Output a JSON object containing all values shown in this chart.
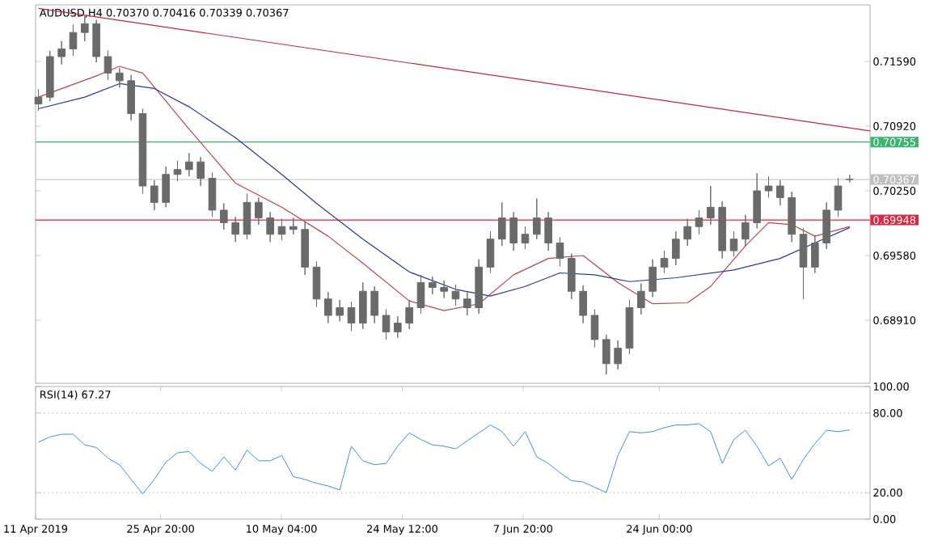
{
  "chart_data": [
    {
      "type": "candlestick",
      "title": "AUDUSD,H4  0.70370 0.70416 0.70339 0.70367",
      "color": "#6a6a6a",
      "x": [
        "2019-04-11T08:00",
        "2019-04-12T17:00",
        "2019-04-14T02:00",
        "2019-04-15T11:00",
        "2019-04-16T20:00",
        "2019-04-18T05:00",
        "2019-04-19T14:00",
        "2019-04-20T23:00",
        "2019-04-22T08:00",
        "2019-04-23T17:00",
        "2019-04-25T02:00",
        "2019-04-26T11:00",
        "2019-04-27T20:00",
        "2019-04-29T05:00",
        "2019-04-30T14:00",
        "2019-05-01T23:00",
        "2019-05-03T08:00",
        "2019-05-04T17:00",
        "2019-05-06T02:00",
        "2019-05-07T11:00",
        "2019-05-08T20:00",
        "2019-05-10T05:00",
        "2019-05-11T14:00",
        "2019-05-12T23:00",
        "2019-05-14T08:00",
        "2019-05-15T17:00",
        "2019-05-17T02:00",
        "2019-05-18T11:00",
        "2019-05-19T20:00",
        "2019-05-21T05:00",
        "2019-05-22T14:00",
        "2019-05-23T23:00",
        "2019-05-25T08:00",
        "2019-05-26T17:00",
        "2019-05-28T02:00",
        "2019-05-29T11:00",
        "2019-05-30T20:00",
        "2019-06-01T05:00",
        "2019-06-02T14:00",
        "2019-06-03T23:00",
        "2019-06-05T08:00",
        "2019-06-06T17:00",
        "2019-06-08T02:00",
        "2019-06-09T11:00",
        "2019-06-10T20:00",
        "2019-06-12T05:00",
        "2019-06-13T14:00",
        "2019-06-14T23:00",
        "2019-06-16T08:00",
        "2019-06-17T17:00",
        "2019-06-19T02:00",
        "2019-06-20T11:00",
        "2019-06-21T20:00",
        "2019-06-23T05:00",
        "2019-06-24T14:00",
        "2019-06-25T23:00",
        "2019-06-27T08:00",
        "2019-06-28T17:00",
        "2019-06-30T02:00",
        "2019-07-01T11:00",
        "2019-07-02T20:00",
        "2019-07-04T05:00",
        "2019-07-05T14:00",
        "2019-07-06T23:00",
        "2019-07-08T08:00",
        "2019-07-09T17:00",
        "2019-07-11T02:00",
        "2019-07-12T11:00",
        "2019-07-13T20:00",
        "2019-07-15T05:00",
        "2019-07-16T14:00"
      ],
      "ohlc": [
        [
          0.7115,
          0.713,
          0.7108,
          0.7122
        ],
        [
          0.7122,
          0.717,
          0.7118,
          0.7164
        ],
        [
          0.7164,
          0.718,
          0.7156,
          0.7172
        ],
        [
          0.7172,
          0.7197,
          0.7165,
          0.7189
        ],
        [
          0.7189,
          0.7206,
          0.718,
          0.7198
        ],
        [
          0.7198,
          0.7202,
          0.7158,
          0.7164
        ],
        [
          0.7164,
          0.717,
          0.714,
          0.7147
        ],
        [
          0.7147,
          0.7152,
          0.7132,
          0.7139
        ],
        [
          0.7139,
          0.7145,
          0.7098,
          0.7105
        ],
        [
          0.7105,
          0.711,
          0.7022,
          0.703
        ],
        [
          0.703,
          0.7036,
          0.7005,
          0.7013
        ],
        [
          0.7013,
          0.705,
          0.7008,
          0.7042
        ],
        [
          0.7042,
          0.7056,
          0.7035,
          0.7047
        ],
        [
          0.7047,
          0.7064,
          0.704,
          0.7055
        ],
        [
          0.7055,
          0.706,
          0.703,
          0.7038
        ],
        [
          0.7038,
          0.7044,
          0.6998,
          0.7005
        ],
        [
          0.7005,
          0.7012,
          0.6985,
          0.6992
        ],
        [
          0.6992,
          0.6998,
          0.6972,
          0.698
        ],
        [
          0.698,
          0.7022,
          0.6975,
          0.7013
        ],
        [
          0.7013,
          0.7018,
          0.699,
          0.6997
        ],
        [
          0.6997,
          0.7003,
          0.6972,
          0.698
        ],
        [
          0.698,
          0.6996,
          0.6974,
          0.6988
        ],
        [
          0.6988,
          0.6997,
          0.698,
          0.6985
        ],
        [
          0.6985,
          0.6993,
          0.6938,
          0.6946
        ],
        [
          0.6946,
          0.6952,
          0.6905,
          0.6913
        ],
        [
          0.6913,
          0.692,
          0.6888,
          0.6896
        ],
        [
          0.6896,
          0.6912,
          0.689,
          0.6904
        ],
        [
          0.6904,
          0.691,
          0.688,
          0.6888
        ],
        [
          0.6888,
          0.693,
          0.6882,
          0.6921
        ],
        [
          0.6921,
          0.6926,
          0.6888,
          0.6896
        ],
        [
          0.6896,
          0.6902,
          0.6871,
          0.6879
        ],
        [
          0.6879,
          0.6895,
          0.6873,
          0.6888
        ],
        [
          0.6888,
          0.6912,
          0.6882,
          0.6904
        ],
        [
          0.6904,
          0.6938,
          0.6898,
          0.693
        ],
        [
          0.693,
          0.6936,
          0.6918,
          0.6925
        ],
        [
          0.6925,
          0.6932,
          0.6914,
          0.6921
        ],
        [
          0.6921,
          0.6928,
          0.6906,
          0.6913
        ],
        [
          0.6913,
          0.692,
          0.6896,
          0.6904
        ],
        [
          0.6904,
          0.6954,
          0.6898,
          0.6946
        ],
        [
          0.6946,
          0.6983,
          0.694,
          0.6975
        ],
        [
          0.6975,
          0.7013,
          0.6968,
          0.6997
        ],
        [
          0.6997,
          0.7003,
          0.6963,
          0.6971
        ],
        [
          0.6971,
          0.6988,
          0.6965,
          0.698
        ],
        [
          0.698,
          0.7017,
          0.6975,
          0.6997
        ],
        [
          0.6997,
          0.7003,
          0.6963,
          0.6971
        ],
        [
          0.6971,
          0.6977,
          0.6947,
          0.6955
        ],
        [
          0.6955,
          0.696,
          0.6913,
          0.6921
        ],
        [
          0.6921,
          0.6927,
          0.6888,
          0.6896
        ],
        [
          0.6896,
          0.6902,
          0.6863,
          0.6871
        ],
        [
          0.6871,
          0.6876,
          0.6835,
          0.6846
        ],
        [
          0.6846,
          0.687,
          0.684,
          0.6862
        ],
        [
          0.6862,
          0.6912,
          0.6856,
          0.6904
        ],
        [
          0.6904,
          0.6929,
          0.6897,
          0.6921
        ],
        [
          0.6921,
          0.6954,
          0.6915,
          0.6946
        ],
        [
          0.6946,
          0.6963,
          0.694,
          0.6955
        ],
        [
          0.6955,
          0.6983,
          0.6948,
          0.6975
        ],
        [
          0.6975,
          0.6996,
          0.6968,
          0.6988
        ],
        [
          0.6988,
          0.7005,
          0.698,
          0.6997
        ],
        [
          0.6997,
          0.703,
          0.699,
          0.7008
        ],
        [
          0.7008,
          0.7014,
          0.6955,
          0.6963
        ],
        [
          0.6963,
          0.6983,
          0.6957,
          0.6975
        ],
        [
          0.6975,
          0.7,
          0.6968,
          0.6992
        ],
        [
          0.6992,
          0.7043,
          0.6986,
          0.7025
        ],
        [
          0.7025,
          0.704,
          0.7018,
          0.703
        ],
        [
          0.703,
          0.7036,
          0.701,
          0.7018
        ],
        [
          0.7018,
          0.7024,
          0.6972,
          0.698
        ],
        [
          0.698,
          0.6986,
          0.6913,
          0.6946
        ],
        [
          0.6946,
          0.6979,
          0.694,
          0.6971
        ],
        [
          0.6971,
          0.7013,
          0.6965,
          0.7005
        ],
        [
          0.7005,
          0.7038,
          0.6998,
          0.703
        ],
        [
          0.7037,
          0.70416,
          0.70339,
          0.70367
        ]
      ],
      "series": [
        {
          "type": "line",
          "color": "#b04a55",
          "x": [
            "2019-04-11T08:00",
            "2019-04-18T05:00",
            "2019-04-20T23:00",
            "2019-04-23T17:00",
            "2019-04-29T05:00",
            "2019-05-04T17:00",
            "2019-05-10T05:00",
            "2019-05-15T17:00",
            "2019-05-19T20:00",
            "2019-05-25T08:00",
            "2019-05-29T11:00",
            "2019-06-02T14:00",
            "2019-06-06T17:00",
            "2019-06-10T20:00",
            "2019-06-14T23:00",
            "2019-06-19T02:00",
            "2019-06-23T05:00",
            "2019-06-27T08:00",
            "2019-06-30T02:00",
            "2019-07-04T05:00",
            "2019-07-06T23:00",
            "2019-07-09T17:00",
            "2019-07-12T11:00",
            "2019-07-16T14:00"
          ],
          "values": [
            0.7122,
            0.7144,
            0.7154,
            0.7147,
            0.7089,
            0.7033,
            0.7008,
            0.6978,
            0.695,
            0.6911,
            0.6901,
            0.6908,
            0.6938,
            0.6955,
            0.6958,
            0.693,
            0.6908,
            0.6909,
            0.6926,
            0.6968,
            0.6992,
            0.699,
            0.6978,
            0.6988
          ]
        },
        {
          "type": "line",
          "color": "#2e3a8c",
          "x": [
            "2019-04-11T08:00",
            "2019-04-16T20:00",
            "2019-04-20T23:00",
            "2019-04-25T02:00",
            "2019-04-29T05:00",
            "2019-05-04T17:00",
            "2019-05-10T05:00",
            "2019-05-14T08:00",
            "2019-05-19T20:00",
            "2019-05-25T08:00",
            "2019-05-30T20:00",
            "2019-06-03T23:00",
            "2019-06-08T02:00",
            "2019-06-12T05:00",
            "2019-06-16T08:00",
            "2019-06-20T11:00",
            "2019-06-25T23:00",
            "2019-07-02T20:00",
            "2019-07-08T08:00",
            "2019-07-12T11:00",
            "2019-07-16T14:00"
          ],
          "values": [
            0.711,
            0.7122,
            0.7136,
            0.7131,
            0.7112,
            0.708,
            0.7042,
            0.7012,
            0.6975,
            0.6941,
            0.6923,
            0.6916,
            0.6926,
            0.694,
            0.6938,
            0.6931,
            0.6935,
            0.6943,
            0.6955,
            0.6971,
            0.6987
          ]
        },
        {
          "type": "line",
          "color": "#b03040",
          "x": [
            "2019-04-11T08:00",
            "2019-07-19T00:00"
          ],
          "values": [
            0.7214,
            0.7087
          ]
        }
      ],
      "ref_lines": [
        {
          "axis": "y",
          "value": 0.70755,
          "label": "0.70755",
          "color": "#3cb371"
        },
        {
          "axis": "y",
          "value": 0.70367,
          "label": "0.70367",
          "color": "#c0c0c0"
        },
        {
          "axis": "y",
          "value": 0.69948,
          "label": "0.69948",
          "color": "#d42a44"
        }
      ],
      "xlim": [
        "2019-04-11T00:00",
        "2019-07-19T00:00"
      ],
      "ylim": [
        0.68257,
        0.72176
      ],
      "yticks": [
        {
          "value": 0.7159,
          "label": "0.71590"
        },
        {
          "value": 0.7092,
          "label": "0.70920"
        },
        {
          "value": 0.7025,
          "label": "0.70250"
        },
        {
          "value": 0.6958,
          "label": "0.69580"
        },
        {
          "value": 0.6891,
          "label": "0.68910"
        }
      ],
      "tick_labels": "y"
    },
    {
      "type": "line",
      "title": "RSI(14) 67.27",
      "color": "#4a90c8",
      "x": [
        "2019-04-11T08:00",
        "2019-04-12T17:00",
        "2019-04-14T02:00",
        "2019-04-15T11:00",
        "2019-04-16T20:00",
        "2019-04-18T05:00",
        "2019-04-19T14:00",
        "2019-04-20T23:00",
        "2019-04-22T08:00",
        "2019-04-23T17:00",
        "2019-04-25T02:00",
        "2019-04-26T11:00",
        "2019-04-27T20:00",
        "2019-04-29T05:00",
        "2019-04-30T14:00",
        "2019-05-01T23:00",
        "2019-05-03T08:00",
        "2019-05-04T17:00",
        "2019-05-06T02:00",
        "2019-05-07T11:00",
        "2019-05-08T20:00",
        "2019-05-10T05:00",
        "2019-05-11T14:00",
        "2019-05-12T23:00",
        "2019-05-14T08:00",
        "2019-05-15T17:00",
        "2019-05-17T02:00",
        "2019-05-18T11:00",
        "2019-05-19T20:00",
        "2019-05-21T05:00",
        "2019-05-22T14:00",
        "2019-05-23T23:00",
        "2019-05-25T08:00",
        "2019-05-26T17:00",
        "2019-05-28T02:00",
        "2019-05-29T11:00",
        "2019-05-30T20:00",
        "2019-06-01T05:00",
        "2019-06-02T14:00",
        "2019-06-03T23:00",
        "2019-06-05T08:00",
        "2019-06-06T17:00",
        "2019-06-08T02:00",
        "2019-06-09T11:00",
        "2019-06-10T20:00",
        "2019-06-12T05:00",
        "2019-06-13T14:00",
        "2019-06-14T23:00",
        "2019-06-16T08:00",
        "2019-06-17T17:00",
        "2019-06-19T02:00",
        "2019-06-20T11:00",
        "2019-06-21T20:00",
        "2019-06-23T05:00",
        "2019-06-24T14:00",
        "2019-06-25T23:00",
        "2019-06-27T08:00",
        "2019-06-28T17:00",
        "2019-06-30T02:00",
        "2019-07-01T11:00",
        "2019-07-02T20:00",
        "2019-07-04T05:00",
        "2019-07-05T14:00",
        "2019-07-06T23:00",
        "2019-07-08T08:00",
        "2019-07-09T17:00",
        "2019-07-11T02:00",
        "2019-07-12T11:00",
        "2019-07-13T20:00",
        "2019-07-15T05:00",
        "2019-07-16T14:00"
      ],
      "values": [
        58,
        62,
        64,
        64,
        56,
        54,
        46,
        41,
        30,
        19,
        30,
        43,
        50,
        51,
        42,
        36,
        47,
        37,
        52,
        44,
        44,
        48,
        32,
        30,
        27,
        25,
        22,
        55,
        44,
        41,
        42,
        55,
        65,
        60,
        56,
        55,
        53,
        59,
        65,
        71,
        66,
        55,
        66,
        47,
        42,
        35,
        29,
        28,
        24,
        20,
        48,
        66,
        65,
        66,
        69,
        71,
        71,
        72,
        66,
        42,
        60,
        67,
        55,
        40,
        46,
        30,
        45,
        57,
        67,
        66,
        67.27
      ],
      "ref_lines": [
        {
          "axis": "y",
          "value": 80,
          "color": "#b0b0b0",
          "line_style": "dotted"
        },
        {
          "axis": "y",
          "value": 20,
          "color": "#b0b0b0",
          "line_style": "dotted"
        }
      ],
      "xlim": [
        "2019-04-11T00:00",
        "2019-07-19T00:00"
      ],
      "ylim": [
        0,
        100
      ],
      "xticks": [
        {
          "value": "2019-04-11T00:00",
          "label": "11 Apr 2019"
        },
        {
          "value": "2019-04-25T20:00",
          "label": "25 Apr 20:00"
        },
        {
          "value": "2019-05-10T04:00",
          "label": "10 May 04:00"
        },
        {
          "value": "2019-05-24T12:00",
          "label": "24 May 12:00"
        },
        {
          "value": "2019-06-07T20:00",
          "label": "7 Jun 20:00"
        },
        {
          "value": "2019-06-24T00:00",
          "label": "24 Jun 00:00"
        }
      ],
      "yticks": [
        {
          "value": 100,
          "label": "100.00"
        },
        {
          "value": 80,
          "label": "80.00"
        },
        {
          "value": 20,
          "label": "20.00"
        },
        {
          "value": 0,
          "label": "0.00"
        }
      ]
    }
  ]
}
